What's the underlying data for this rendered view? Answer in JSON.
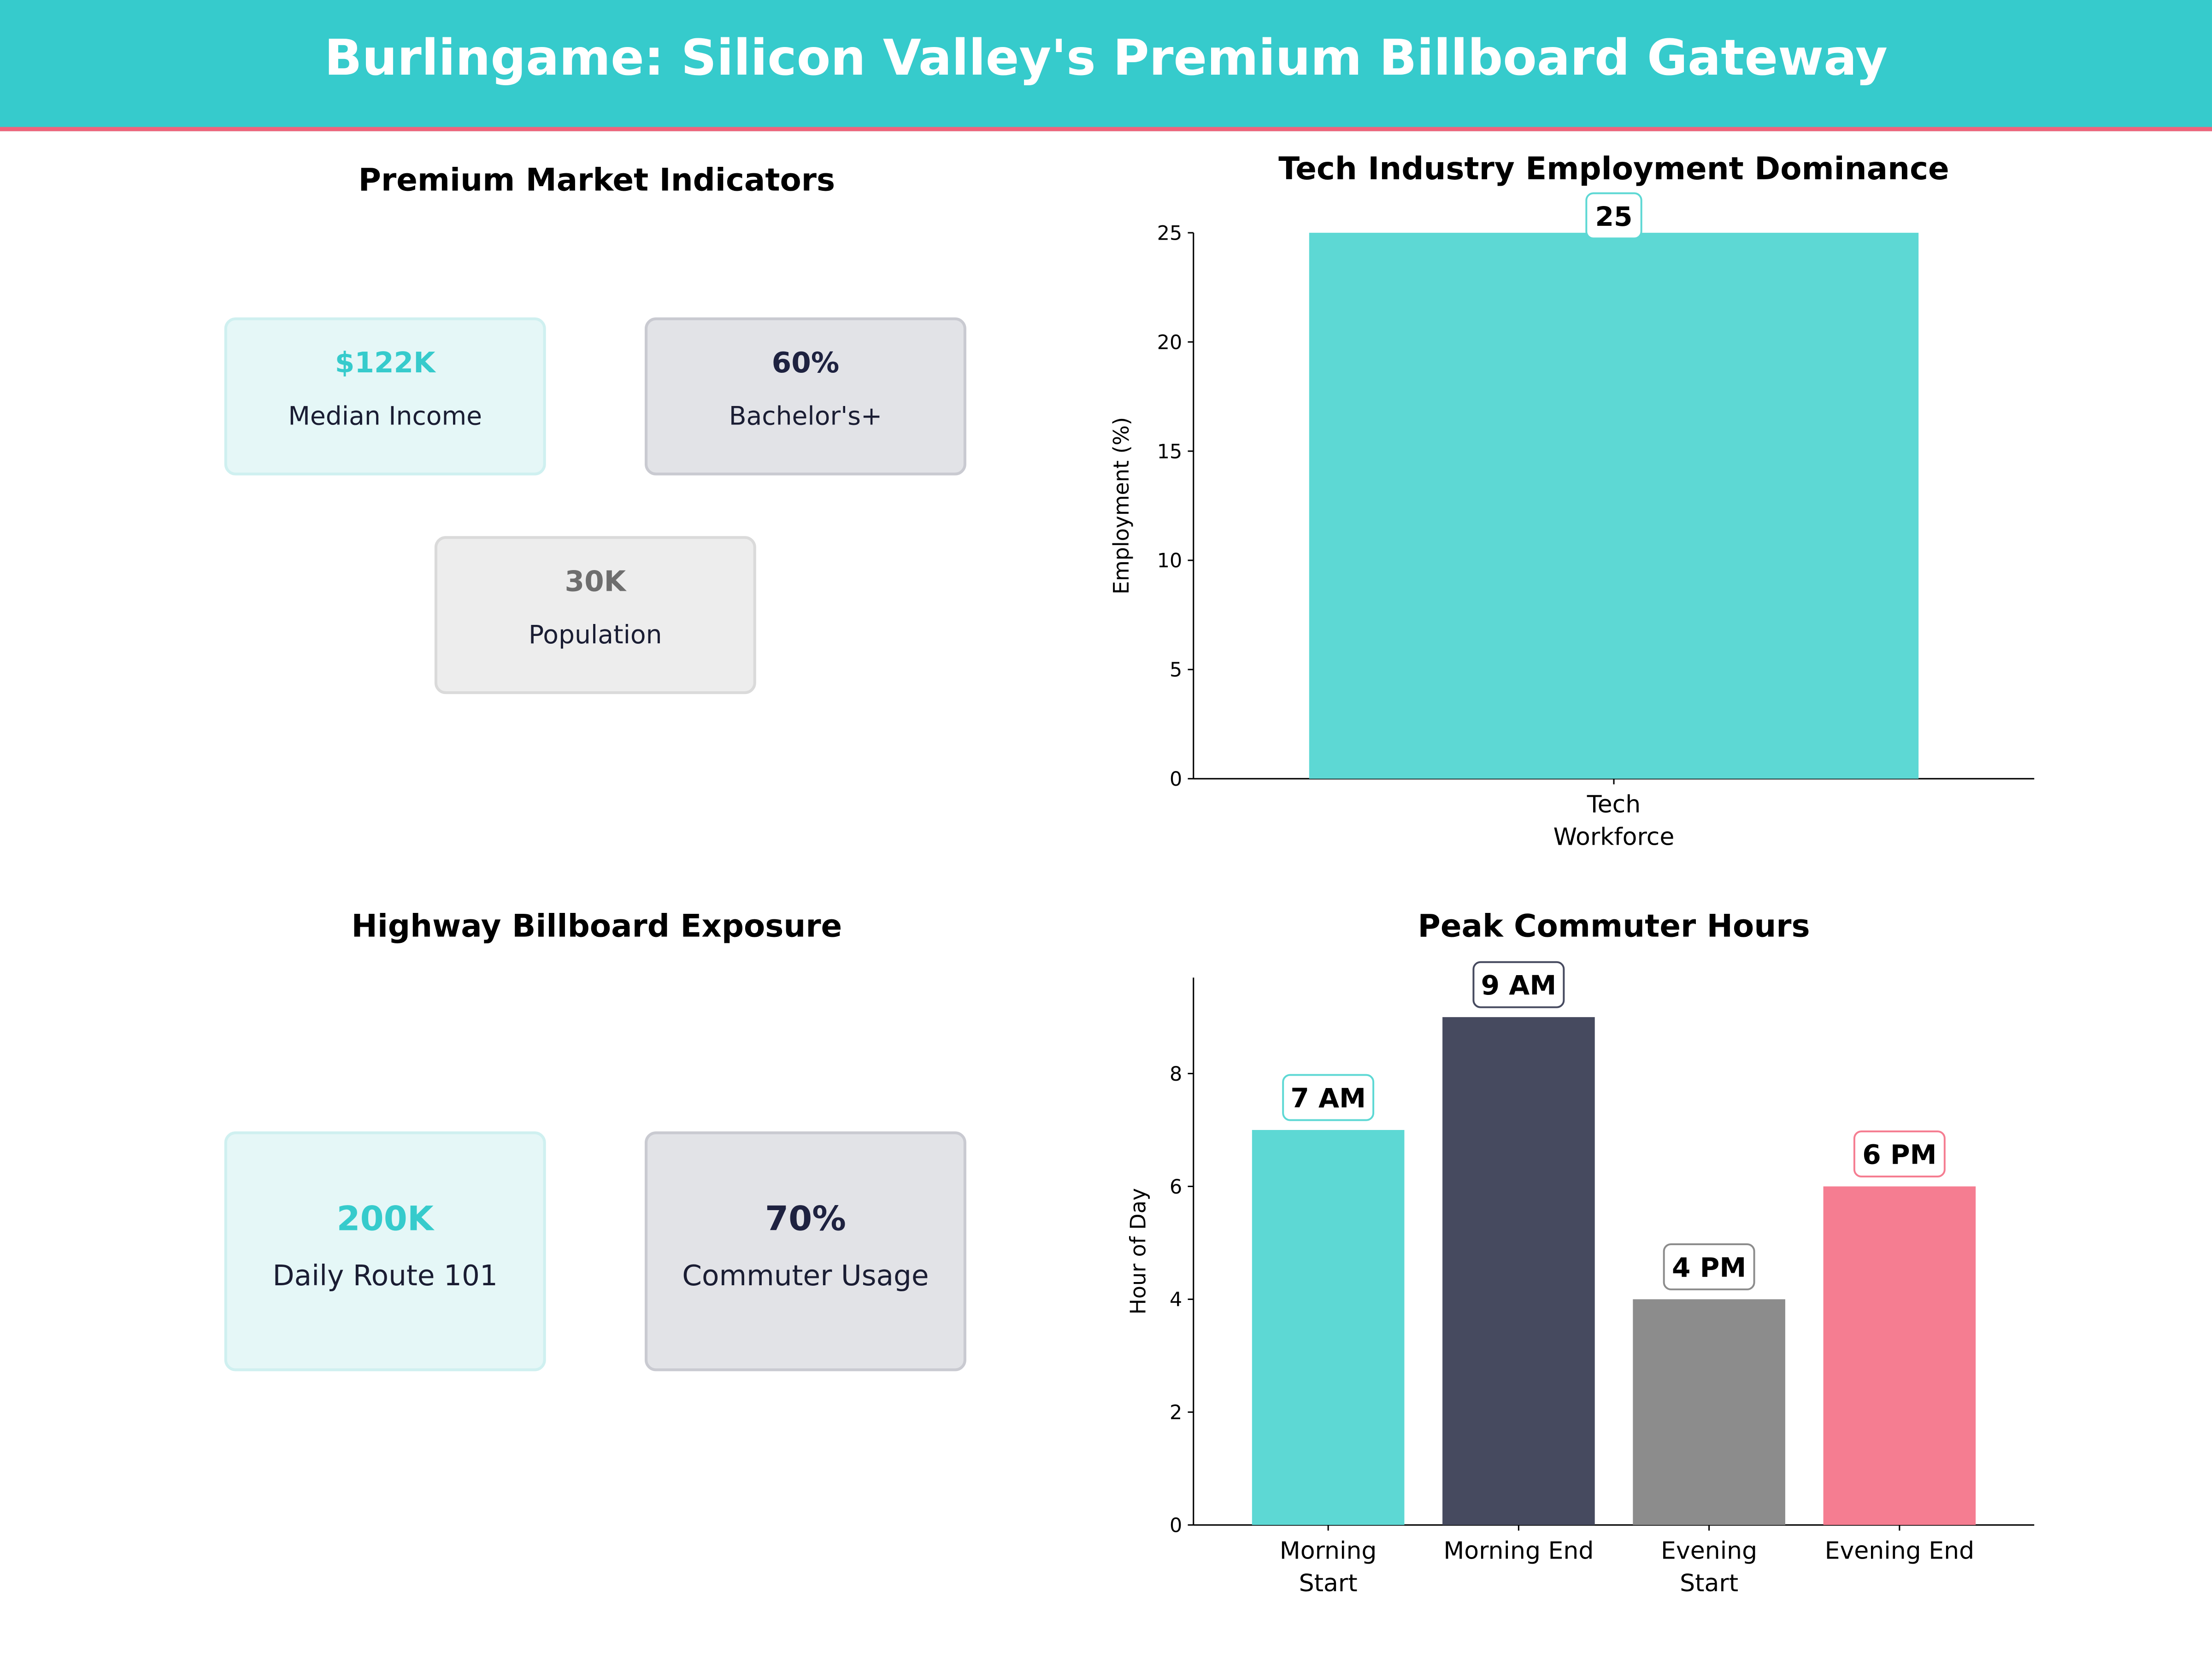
{
  "header": {
    "title": "Burlingame: Silicon Valley's Premium Billboard Gateway"
  },
  "market": {
    "title": "Premium Market Indicators",
    "cards": [
      {
        "value": "$122K",
        "label": "Median Income",
        "value_color": "#36CBCC",
        "bg": "#E5F7F7",
        "border": "#CFF0F0"
      },
      {
        "value": "60%",
        "label": "Bachelor's+",
        "value_color": "#1E2240",
        "bg": "#E2E3E7",
        "border": "#C9CAD1"
      },
      {
        "value": "30K",
        "label": "Population",
        "value_color": "#6E6E6E",
        "bg": "#EDEDED",
        "border": "#DADADA"
      }
    ]
  },
  "highway": {
    "title": "Highway Billboard Exposure",
    "cards": [
      {
        "value": "200K",
        "label": "Daily Route 101",
        "value_color": "#36CBCC",
        "bg": "#E5F7F7",
        "border": "#CFF0F0"
      },
      {
        "value": "70%",
        "label": "Commuter Usage",
        "value_color": "#1E2240",
        "bg": "#E2E3E7",
        "border": "#C9CAD1"
      }
    ]
  },
  "chart_data": [
    {
      "type": "bar",
      "title": "Tech Industry Employment Dominance",
      "categories": [
        "Tech\nWorkforce"
      ],
      "values": [
        25
      ],
      "data_labels": [
        "25"
      ],
      "colors": [
        "#5DD8D4"
      ],
      "xlabel": "",
      "ylabel": "Employment (%)",
      "ylim": [
        0,
        25
      ],
      "yticks": [
        0,
        5,
        10,
        15,
        20,
        25
      ],
      "grid": false
    },
    {
      "type": "bar",
      "title": "Peak Commuter Hours",
      "categories": [
        "Morning\nStart",
        "Morning End",
        "Evening\nStart",
        "Evening End"
      ],
      "values": [
        7,
        9,
        4,
        6
      ],
      "data_labels": [
        "7 AM",
        "9 AM",
        "4 PM",
        "6 PM"
      ],
      "colors": [
        "#5DD8D4",
        "#464A5F",
        "#8C8C8C",
        "#F57D91"
      ],
      "xlabel": "",
      "ylabel": "Hour of Day",
      "ylim": [
        0,
        9.7
      ],
      "yticks": [
        0,
        2,
        4,
        6,
        8
      ],
      "grid": false
    }
  ]
}
